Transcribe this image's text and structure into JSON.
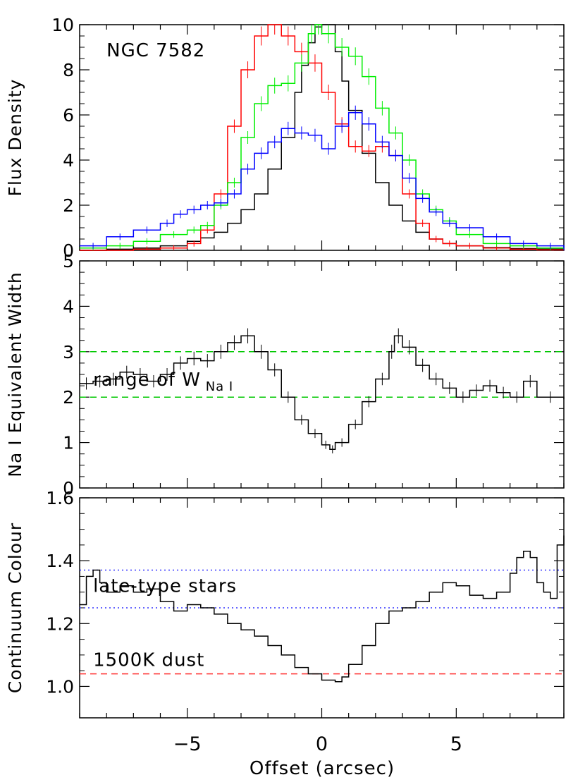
{
  "figure": {
    "xlabel": "Offset (arcsec)",
    "xlim": [
      -9,
      9
    ],
    "xticks_major": [
      -5,
      0,
      5
    ],
    "xtick_labels": [
      "−5",
      "0",
      "5"
    ]
  },
  "chart_data": [
    {
      "type": "line",
      "step": true,
      "ylabel": "Flux Density",
      "ylim": [
        0,
        10
      ],
      "yticks": [
        0,
        2,
        4,
        6,
        8,
        10
      ],
      "ytick_labels": [
        "0",
        "2",
        "4",
        "6",
        "8",
        "10"
      ],
      "annotations": [
        {
          "text": "NGC 7582",
          "x": -8.0,
          "y": 8.6
        }
      ],
      "series": [
        {
          "color": "#000000",
          "errors": false,
          "x": [
            -9,
            -8,
            -7,
            -6,
            -5,
            -4.5,
            -4,
            -3.5,
            -3,
            -2.5,
            -2,
            -1.5,
            -1,
            -0.75,
            -0.5,
            -0.25,
            0,
            0.25,
            0.5,
            0.75,
            1,
            1.5,
            2,
            2.5,
            3,
            3.5,
            4,
            4.5,
            5,
            6,
            7,
            8,
            9
          ],
          "y": [
            0,
            0.05,
            0.1,
            0.2,
            0.4,
            0.55,
            0.8,
            1.2,
            1.8,
            2.5,
            3.6,
            5.0,
            7.0,
            8.2,
            9.2,
            9.9,
            10.2,
            10.0,
            8.8,
            7.5,
            6.2,
            4.3,
            3.0,
            2.0,
            1.3,
            0.8,
            0.5,
            0.3,
            0.2,
            0.12,
            0.08,
            0.05,
            0.03
          ]
        },
        {
          "color": "#ff0000",
          "errors": true,
          "x": [
            -9,
            -7,
            -6,
            -5,
            -4.5,
            -4,
            -3.5,
            -3,
            -2.5,
            -2,
            -1.5,
            -1,
            -0.5,
            0,
            0.5,
            1,
            1.5,
            2,
            2.5,
            3,
            3.5,
            4,
            4.5,
            5,
            6,
            7,
            8,
            9
          ],
          "y": [
            0,
            0.05,
            0.1,
            0.3,
            0.9,
            2.5,
            5.5,
            8.0,
            9.5,
            10.1,
            9.5,
            8.8,
            8.3,
            7.0,
            5.6,
            4.6,
            4.4,
            4.6,
            4.2,
            2.5,
            1.2,
            0.5,
            0.3,
            0.2,
            0.1,
            0.05,
            0.02,
            0
          ]
        },
        {
          "color": "#00ee00",
          "errors": true,
          "x": [
            -9,
            -8,
            -7,
            -6,
            -5,
            -4.5,
            -4,
            -3.5,
            -3,
            -2.5,
            -2,
            -1.5,
            -1,
            -0.5,
            -0.25,
            0,
            0.5,
            1,
            1.5,
            2,
            2.5,
            3,
            3.5,
            4,
            4.5,
            5,
            6,
            7,
            8,
            9
          ],
          "y": [
            0.1,
            0.2,
            0.4,
            0.7,
            0.9,
            1.1,
            2.0,
            3.0,
            5.0,
            6.5,
            7.3,
            7.4,
            8.3,
            9.6,
            10.0,
            9.6,
            9.0,
            8.6,
            7.7,
            6.3,
            5.2,
            4.0,
            2.5,
            1.8,
            1.3,
            0.7,
            0.3,
            0.2,
            0.1,
            0.05
          ]
        },
        {
          "color": "#0000ff",
          "errors": true,
          "x": [
            -9,
            -8,
            -7,
            -6,
            -5.5,
            -5,
            -4.5,
            -4,
            -3.5,
            -3,
            -2.5,
            -2,
            -1.5,
            -1,
            -0.5,
            0,
            0.5,
            1,
            1.5,
            2,
            2.5,
            3,
            3.5,
            4,
            4.5,
            5,
            6,
            7,
            8,
            9
          ],
          "y": [
            0.2,
            0.6,
            0.9,
            1.2,
            1.6,
            1.8,
            2.0,
            2.1,
            2.5,
            3.6,
            4.3,
            4.8,
            5.4,
            5.2,
            5.1,
            4.5,
            5.5,
            6.1,
            5.6,
            4.8,
            4.2,
            3.2,
            2.3,
            1.7,
            1.2,
            1.0,
            0.6,
            0.3,
            0.2,
            0.1
          ]
        }
      ]
    },
    {
      "type": "line",
      "step": true,
      "ylabel": "Na I Equivalent Width",
      "ylim": [
        0,
        5
      ],
      "yticks": [
        0,
        1,
        2,
        3,
        4,
        5
      ],
      "ytick_labels": [
        "0",
        "1",
        "2",
        "3",
        "4",
        "5"
      ],
      "annotations": [
        {
          "text_main": "range of W",
          "text_sub": "Na I",
          "x": -8.5,
          "y": 2.25
        }
      ],
      "hlines": [
        {
          "y": 3.0,
          "color": "#00c800",
          "style": "dashed"
        },
        {
          "y": 2.0,
          "color": "#00c800",
          "style": "dashed"
        }
      ],
      "series": [
        {
          "color": "#000000",
          "errors": true,
          "x": [
            -9,
            -8.5,
            -8,
            -7.5,
            -7,
            -6.5,
            -6,
            -5.5,
            -5,
            -4.5,
            -4,
            -3.5,
            -3,
            -2.5,
            -2,
            -1.5,
            -1,
            -0.5,
            0,
            0.3,
            0.5,
            1,
            1.5,
            2,
            2.5,
            2.7,
            3,
            3.5,
            4,
            4.5,
            5,
            5.5,
            6,
            6.5,
            7,
            7.5,
            8,
            9
          ],
          "y": [
            2.3,
            2.35,
            2.4,
            2.55,
            2.5,
            2.35,
            2.5,
            2.75,
            2.85,
            2.8,
            3.0,
            3.2,
            3.35,
            3.0,
            2.6,
            2.0,
            1.5,
            1.2,
            0.95,
            0.85,
            1.0,
            1.4,
            1.9,
            2.4,
            3.0,
            3.35,
            3.1,
            2.7,
            2.4,
            2.2,
            2.0,
            2.15,
            2.25,
            2.1,
            2.0,
            2.35,
            2.0,
            1.95
          ]
        }
      ]
    },
    {
      "type": "line",
      "step": true,
      "ylabel": "Continuum Colour",
      "ylim": [
        0.9,
        1.6
      ],
      "yticks": [
        1.0,
        1.2,
        1.4,
        1.6
      ],
      "ytick_labels": [
        "1.0",
        "1.2",
        "1.4",
        "1.6"
      ],
      "annotations": [
        {
          "text": "late-type stars",
          "x": -8.5,
          "y": 1.3
        },
        {
          "text": "1500K dust",
          "x": -8.5,
          "y": 1.065
        }
      ],
      "hlines": [
        {
          "y": 1.37,
          "color": "#3333ff",
          "style": "dotted"
        },
        {
          "y": 1.25,
          "color": "#3333ff",
          "style": "dotted"
        },
        {
          "y": 1.04,
          "color": "#ff3333",
          "style": "dashed"
        }
      ],
      "series": [
        {
          "color": "#000000",
          "errors": false,
          "x": [
            -9,
            -8.75,
            -8.5,
            -8.25,
            -8,
            -7.5,
            -7,
            -6.5,
            -6,
            -5.5,
            -5,
            -4.5,
            -4,
            -3.5,
            -3,
            -2.5,
            -2,
            -1.5,
            -1,
            -0.5,
            0,
            0.25,
            0.5,
            0.75,
            1,
            1.5,
            2,
            2.5,
            3,
            3.5,
            4,
            4.5,
            5,
            5.5,
            6,
            6.5,
            7,
            7.25,
            7.5,
            7.75,
            8,
            8.25,
            8.5,
            8.75,
            9
          ],
          "y": [
            1.26,
            1.35,
            1.37,
            1.33,
            1.3,
            1.32,
            1.3,
            1.31,
            1.27,
            1.24,
            1.26,
            1.25,
            1.23,
            1.2,
            1.18,
            1.16,
            1.13,
            1.1,
            1.06,
            1.04,
            1.02,
            1.02,
            1.015,
            1.03,
            1.07,
            1.13,
            1.2,
            1.24,
            1.25,
            1.27,
            1.3,
            1.33,
            1.32,
            1.29,
            1.28,
            1.3,
            1.36,
            1.41,
            1.43,
            1.41,
            1.33,
            1.3,
            1.28,
            1.45,
            1.48
          ]
        }
      ]
    }
  ]
}
